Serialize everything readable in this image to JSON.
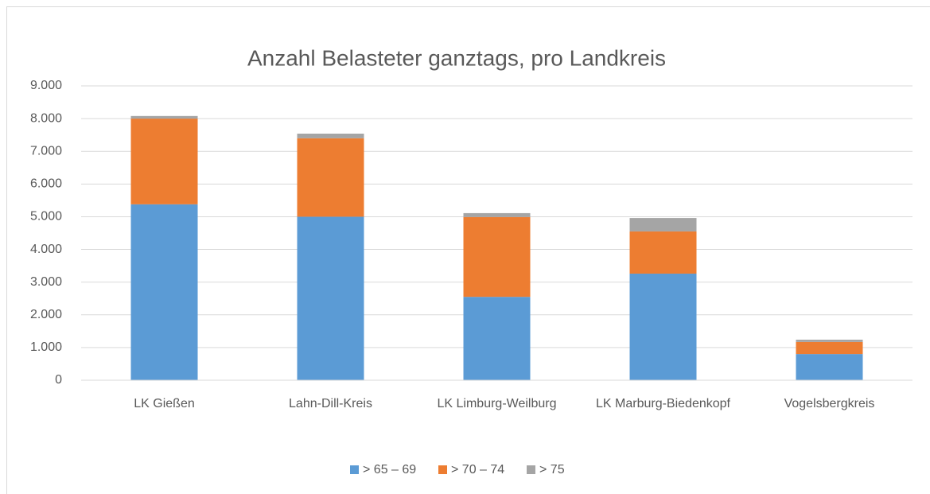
{
  "chart_data": {
    "type": "bar",
    "stacked": true,
    "title": "Anzahl Belasteter ganztags, pro Landkreis",
    "categories": [
      "LK Gießen",
      "Lahn-Dill-Kreis",
      "LK Limburg-Weilburg",
      "LK Marburg-Biedenkopf",
      "Vogelsbergkreis"
    ],
    "series": [
      {
        "name": "> 65 – 69",
        "color": "#5b9bd5",
        "values": [
          5380,
          5000,
          2550,
          3260,
          800
        ]
      },
      {
        "name": "> 70 – 74",
        "color": "#ed7d31",
        "values": [
          2620,
          2400,
          2440,
          1290,
          370
        ]
      },
      {
        "name": "> 75",
        "color": "#a5a5a5",
        "values": [
          80,
          140,
          120,
          410,
          70
        ]
      }
    ],
    "ylim": [
      0,
      9000
    ],
    "yticks": [
      0,
      {
        "value": 1000,
        "label": "1.000"
      },
      {
        "value": 2000,
        "label": "2.000"
      },
      {
        "value": 3000,
        "label": "3.000"
      },
      {
        "value": 4000,
        "label": "4.000"
      },
      {
        "value": 5000,
        "label": "5.000"
      },
      {
        "value": 6000,
        "label": "6.000"
      },
      {
        "value": 7000,
        "label": "7.000"
      },
      {
        "value": 8000,
        "label": "8.000"
      },
      {
        "value": 9000,
        "label": "9.000"
      }
    ],
    "grid": true,
    "legend": "bottom"
  }
}
